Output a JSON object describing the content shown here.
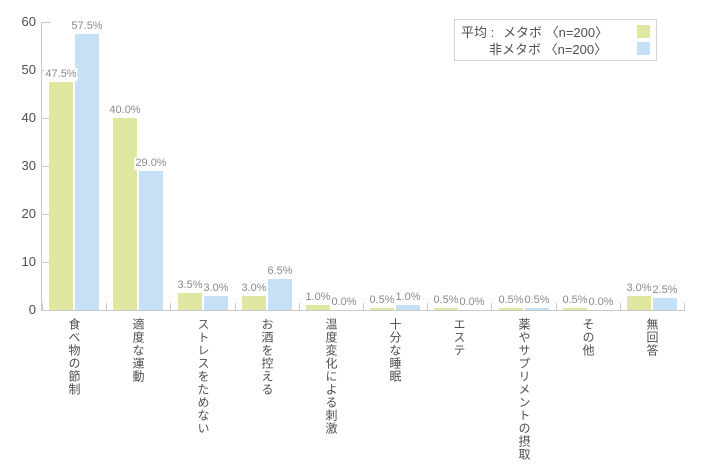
{
  "chart_data": {
    "type": "bar",
    "title": "",
    "xlabel": "",
    "ylabel": "",
    "categories": [
      "食べ物の節制",
      "適度な運動",
      "ストレスをためない",
      "お酒を控える",
      "温度変化による刺激",
      "十分な睡眠",
      "エステ",
      "薬やサプリメントの摂取",
      "その他",
      "無回答"
    ],
    "series": [
      {
        "name": "メタボ 〈n=200〉",
        "color": "#dfe7a1",
        "values": [
          47.5,
          40.0,
          3.5,
          3.0,
          1.0,
          0.5,
          0.5,
          0.5,
          0.5,
          3.0
        ]
      },
      {
        "name": "非メタボ 〈n=200〉",
        "color": "#c6e1f5",
        "values": [
          57.5,
          29.0,
          3.0,
          6.5,
          0.0,
          1.0,
          0.0,
          0.5,
          0.0,
          2.5
        ]
      }
    ],
    "ylim": [
      0,
      60
    ],
    "yticks": [
      0,
      10,
      20,
      30,
      40,
      50,
      60
    ],
    "value_suffix": "%",
    "value_decimals": 1,
    "grid": false,
    "legend_position": "top-right"
  },
  "legend": {
    "prefix": "平均 :",
    "row1": "メタボ 〈n=200〉",
    "row2": "非メタボ 〈n=200〉"
  },
  "colors": {
    "axis": "#c9c9c9",
    "tick_text": "#4f4f4f",
    "value_label": "#8a8a8a",
    "legend_border": "#d4d4d4",
    "background": "#ffffff"
  }
}
